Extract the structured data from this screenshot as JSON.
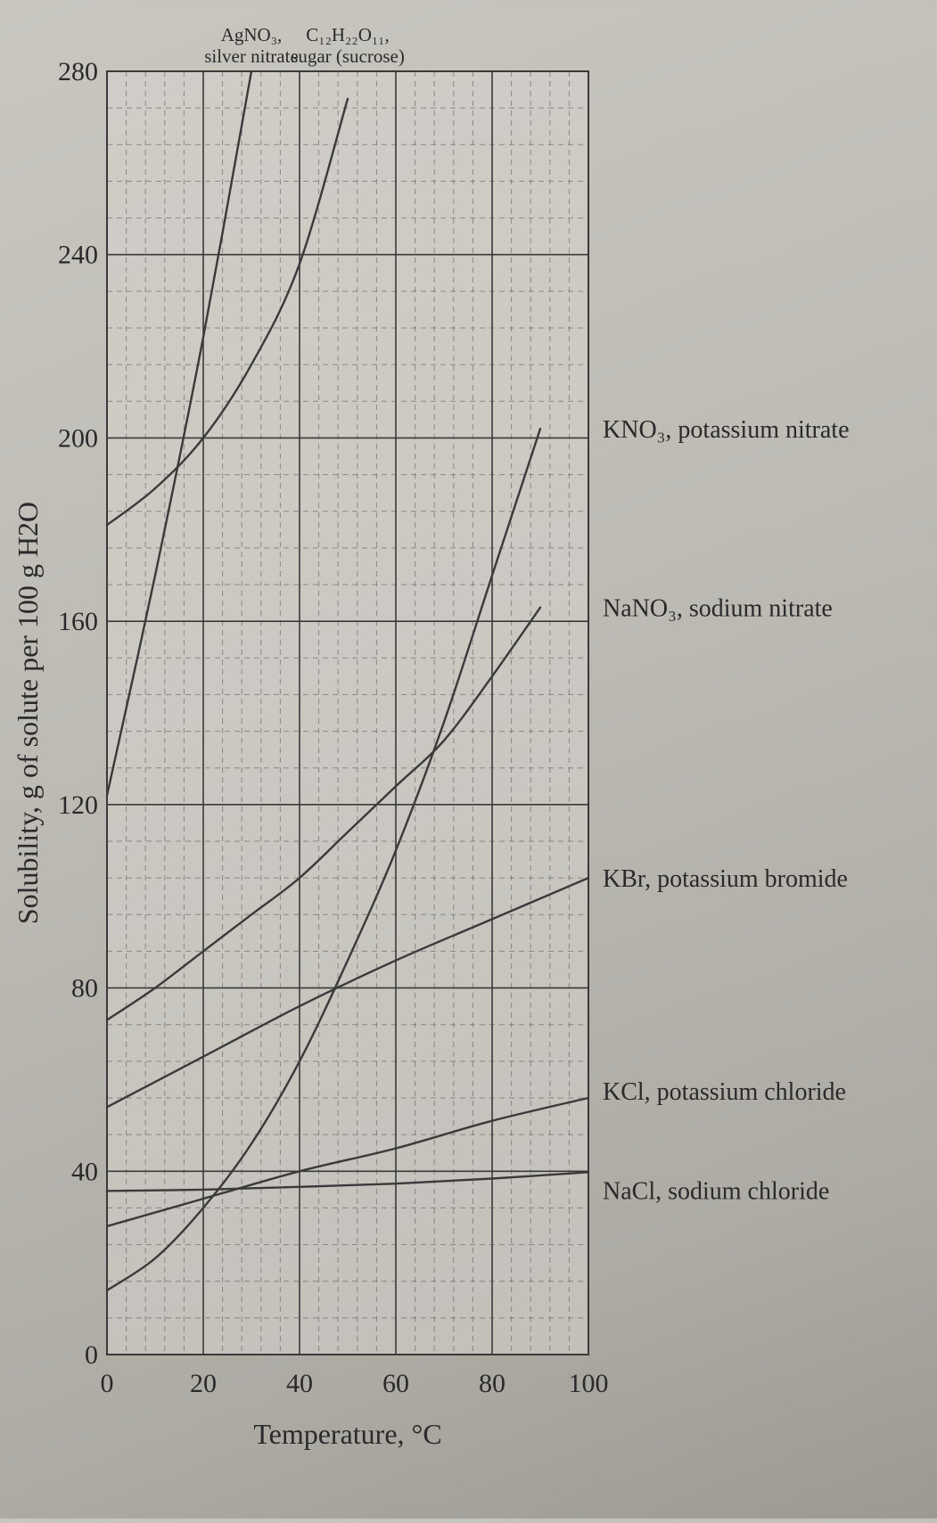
{
  "chart_data": {
    "type": "line",
    "title": "",
    "xlabel": "Temperature, °C",
    "ylabel": "Solubility, g of solute per 100 g H2O",
    "xlim": [
      0,
      100
    ],
    "ylim": [
      0,
      280
    ],
    "x_ticks": [
      "0",
      "20",
      "40",
      "60",
      "80",
      "100"
    ],
    "y_ticks": [
      "0",
      "40",
      "80",
      "120",
      "160",
      "200",
      "240",
      "280"
    ],
    "grid": true,
    "series": [
      {
        "name": "AgNO3, silver nitrate",
        "label_lines": [
          "AgNO₃,",
          "silver nitrate"
        ],
        "color": "#3a3a3a",
        "x": [
          0,
          10,
          20,
          30
        ],
        "y": [
          122,
          170,
          222,
          280
        ]
      },
      {
        "name": "C12H22O11, sugar (sucrose)",
        "label_lines": [
          "C₁₂H₂₂O₁₁,",
          "sugar (sucrose)"
        ],
        "color": "#3a3a3a",
        "x": [
          0,
          10,
          20,
          30,
          40,
          50
        ],
        "y": [
          181,
          189,
          200,
          216,
          238,
          274
        ]
      },
      {
        "name": "KNO3, potassium nitrate",
        "label": "KNO₃, potassium nitrate",
        "color": "#3a3a3a",
        "x": [
          0,
          10,
          20,
          30,
          40,
          50,
          60,
          70,
          80,
          90
        ],
        "y": [
          14,
          21,
          32,
          46,
          64,
          86,
          110,
          138,
          170,
          202
        ]
      },
      {
        "name": "NaNO3, sodium nitrate",
        "label": "NaNO₃, sodium nitrate",
        "color": "#3a3a3a",
        "x": [
          0,
          10,
          20,
          30,
          40,
          50,
          60,
          70,
          80,
          90
        ],
        "y": [
          73,
          80,
          88,
          96,
          104,
          114,
          124,
          134,
          148,
          163
        ]
      },
      {
        "name": "KBr, potassium bromide",
        "label": "KBr, potassium bromide",
        "color": "#3a3a3a",
        "x": [
          0,
          20,
          40,
          60,
          80,
          100
        ],
        "y": [
          54,
          65,
          76,
          86,
          95,
          104
        ]
      },
      {
        "name": "KCl, potassium chloride",
        "label": "KCl, potassium chloride",
        "color": "#3a3a3a",
        "x": [
          0,
          20,
          40,
          60,
          80,
          100
        ],
        "y": [
          28,
          34,
          40,
          45,
          51,
          56
        ]
      },
      {
        "name": "NaCl, sodium chloride",
        "label": "NaCl, sodium chloride",
        "color": "#3a3a3a",
        "x": [
          0,
          20,
          40,
          60,
          80,
          100
        ],
        "y": [
          35.7,
          36.0,
          36.6,
          37.3,
          38.4,
          39.8
        ]
      }
    ]
  }
}
